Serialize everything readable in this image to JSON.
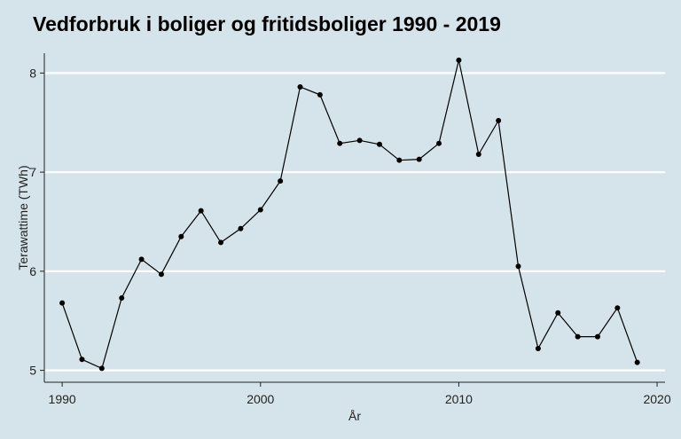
{
  "chart_data": {
    "type": "line",
    "title": "Vedforbruk i boliger og fritidsboliger 1990 - 2019",
    "xlabel": "År",
    "ylabel": "Terawattime (TWh)",
    "xlim": [
      1989.1,
      2020.4
    ],
    "ylim": [
      4.88,
      8.2
    ],
    "x_ticks": [
      1990,
      2000,
      2010,
      2020
    ],
    "y_ticks": [
      5,
      6,
      7,
      8
    ],
    "grid": "horizontal",
    "series": [
      {
        "color": "#000000",
        "x": [
          1990,
          1991,
          1992,
          1993,
          1994,
          1995,
          1996,
          1997,
          1998,
          1999,
          2000,
          2001,
          2002,
          2003,
          2004,
          2005,
          2006,
          2007,
          2008,
          2009,
          2010,
          2011,
          2012,
          2013,
          2014,
          2015,
          2016,
          2017,
          2018,
          2019
        ],
        "y": [
          5.68,
          5.11,
          5.02,
          5.73,
          6.12,
          5.97,
          6.35,
          6.61,
          6.29,
          6.43,
          6.62,
          6.91,
          7.86,
          7.78,
          7.29,
          7.32,
          7.28,
          7.12,
          7.13,
          7.29,
          8.13,
          7.18,
          7.52,
          6.05,
          5.22,
          5.58,
          5.34,
          5.34,
          5.63,
          5.08
        ]
      }
    ]
  }
}
